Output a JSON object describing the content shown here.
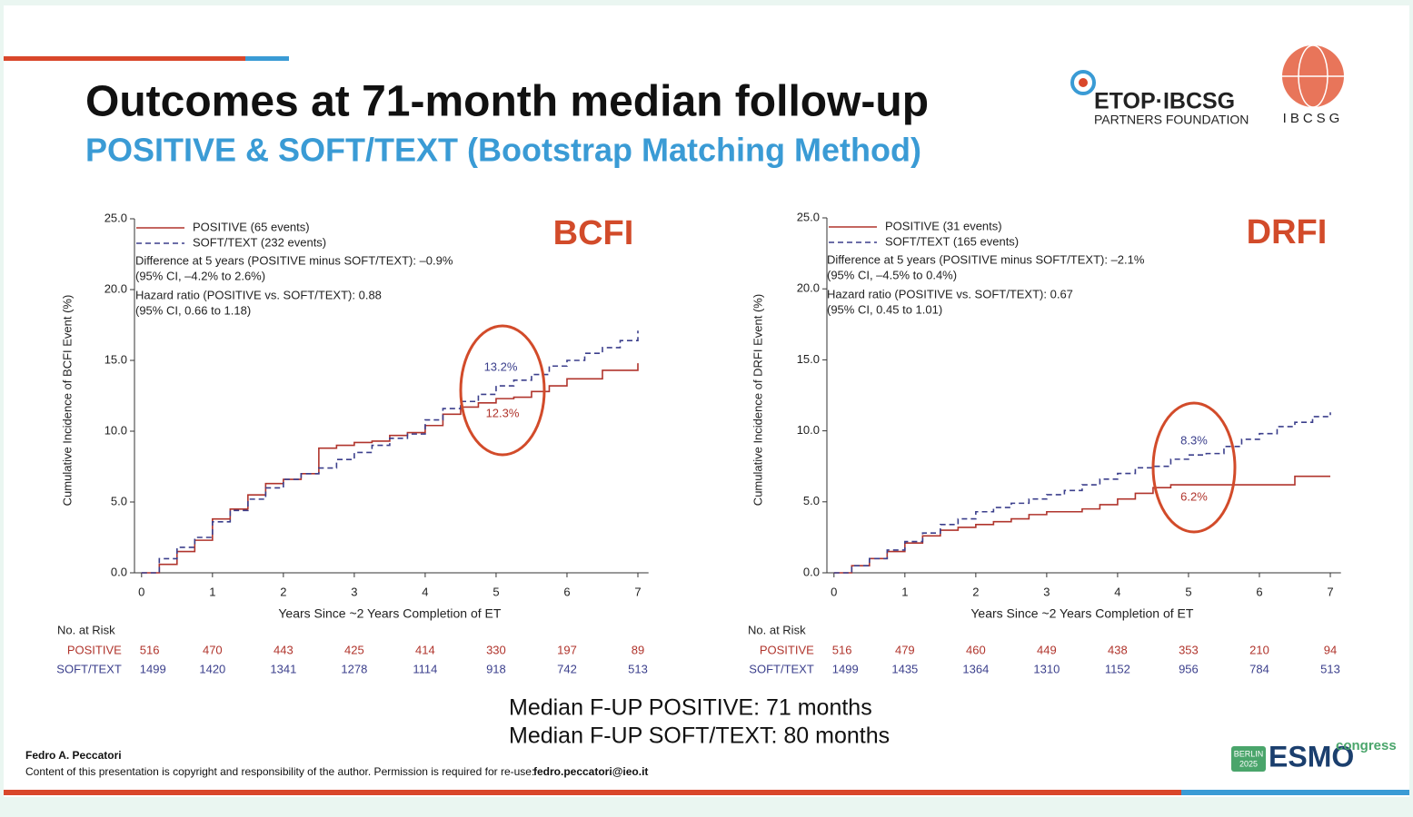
{
  "slide": {
    "title": "Outcomes at 71-month median follow-up",
    "subtitle": "POSITIVE & SOFT/TEXT (Bootstrap Matching Method)",
    "logo_main": "ETOP·IBCSG",
    "logo_sub": "PARTNERS FOUNDATION",
    "logo_ibcsg": "IBCSG",
    "median_lines": [
      "Median F-UP POSITIVE: 71 months",
      "Median F-UP SOFT/TEXT: 80 months"
    ],
    "author": "Fedro A. Peccatori",
    "copyright": "Content of this presentation is copyright and responsibility of the author. Permission is required for re-use:",
    "email": "fedro.peccatori@ieo.it",
    "congress_place": "BERLIN",
    "congress_year": "2025",
    "congress_brand": "ESMO",
    "congress_word": "congress"
  },
  "chart_data": [
    {
      "type": "line",
      "step": true,
      "title": "BCFI",
      "x_label": "Years Since ~2 Years Completion of ET",
      "y_label": "Cumulative Incidence of BCFI Event (%)",
      "xlim": [
        -0.1,
        7.15
      ],
      "ylim": [
        0,
        25
      ],
      "xticks": [
        0,
        1,
        2,
        3,
        4,
        5,
        6,
        7
      ],
      "yticks": [
        {
          "value": 0,
          "label": "0.0"
        },
        {
          "value": 5,
          "label": "5.0"
        },
        {
          "value": 10,
          "label": "10.0"
        },
        {
          "value": 15,
          "label": "15.0"
        },
        {
          "value": 20,
          "label": "20.0"
        },
        {
          "value": 25,
          "label": "25.0"
        }
      ],
      "x": [
        0,
        0.25,
        0.5,
        0.75,
        1,
        1.25,
        1.5,
        1.75,
        2,
        2.25,
        2.5,
        2.75,
        3,
        3.25,
        3.5,
        3.75,
        4,
        4.25,
        4.5,
        4.75,
        5,
        5.25,
        5.5,
        5.75,
        6,
        6.25,
        6.5,
        6.75,
        7
      ],
      "series": [
        {
          "name": "POSITIVE (65 events)",
          "color": "#b0342c",
          "line_style": "solid",
          "values": [
            0,
            0.6,
            1.5,
            2.3,
            3.8,
            4.5,
            5.5,
            6.3,
            6.6,
            7.0,
            8.8,
            9.0,
            9.2,
            9.3,
            9.7,
            9.9,
            10.4,
            11.2,
            11.7,
            12.0,
            12.3,
            12.4,
            12.8,
            13.2,
            13.7,
            13.7,
            14.3,
            14.3,
            14.8
          ]
        },
        {
          "name": "SOFT/TEXT (232 events)",
          "color": "#3b3f8c",
          "line_style": "dashed",
          "values": [
            0,
            1.0,
            1.8,
            2.5,
            3.6,
            4.4,
            5.2,
            6.0,
            6.6,
            7.0,
            7.4,
            8.0,
            8.5,
            9.0,
            9.5,
            9.8,
            10.8,
            11.6,
            12.1,
            12.6,
            13.2,
            13.6,
            14.0,
            14.6,
            15.0,
            15.5,
            15.9,
            16.4,
            17.1
          ]
        }
      ],
      "annotations": [
        "Difference at 5 years (POSITIVE minus SOFT/TEXT): –0.9%",
        "(95% CI, –4.2% to 2.6%)",
        "Hazard ratio (POSITIVE vs. SOFT/TEXT): 0.88",
        "(95% CI, 0.66 to 1.18)"
      ],
      "callouts": [
        "13.2%",
        "12.3%"
      ],
      "risk_table": {
        "title": "No. at Risk",
        "rows": [
          {
            "name": "POSITIVE",
            "values": [
              "516",
              "470",
              "443",
              "425",
              "414",
              "330",
              "197",
              "89"
            ]
          },
          {
            "name": "SOFT/TEXT",
            "values": [
              "1499",
              "1420",
              "1341",
              "1278",
              "1114",
              "918",
              "742",
              "513"
            ]
          }
        ]
      }
    },
    {
      "type": "line",
      "step": true,
      "title": "DRFI",
      "x_label": "Years Since ~2 Years Completion of ET",
      "y_label": "Cumulative Incidence of DRFI Event (%)",
      "xlim": [
        -0.1,
        7.15
      ],
      "ylim": [
        0,
        25
      ],
      "xticks": [
        0,
        1,
        2,
        3,
        4,
        5,
        6,
        7
      ],
      "yticks": [
        {
          "value": 0,
          "label": "0.0"
        },
        {
          "value": 5,
          "label": "5.0"
        },
        {
          "value": 10,
          "label": "10.0"
        },
        {
          "value": 15,
          "label": "15.0"
        },
        {
          "value": 20,
          "label": "20.0"
        },
        {
          "value": 25,
          "label": "25.0"
        }
      ],
      "x": [
        0,
        0.25,
        0.5,
        0.75,
        1,
        1.25,
        1.5,
        1.75,
        2,
        2.25,
        2.5,
        2.75,
        3,
        3.25,
        3.5,
        3.75,
        4,
        4.25,
        4.5,
        4.75,
        5,
        5.25,
        5.5,
        5.75,
        6,
        6.25,
        6.5,
        6.75,
        7
      ],
      "series": [
        {
          "name": "POSITIVE (31 events)",
          "color": "#b0342c",
          "line_style": "solid",
          "values": [
            0,
            0.5,
            1.0,
            1.5,
            2.1,
            2.6,
            3.0,
            3.2,
            3.4,
            3.6,
            3.8,
            4.1,
            4.3,
            4.3,
            4.5,
            4.8,
            5.2,
            5.6,
            6.0,
            6.2,
            6.2,
            6.2,
            6.2,
            6.2,
            6.2,
            6.2,
            6.8,
            6.8,
            6.8
          ]
        },
        {
          "name": "SOFT/TEXT (165 events)",
          "color": "#3b3f8c",
          "line_style": "dashed",
          "values": [
            0,
            0.5,
            1.0,
            1.6,
            2.2,
            2.8,
            3.4,
            3.8,
            4.3,
            4.6,
            4.9,
            5.2,
            5.5,
            5.8,
            6.2,
            6.6,
            7.0,
            7.4,
            7.5,
            8.0,
            8.3,
            8.4,
            8.9,
            9.4,
            9.8,
            10.3,
            10.6,
            11.0,
            11.3
          ]
        }
      ],
      "annotations": [
        "Difference at 5 years (POSITIVE minus SOFT/TEXT): –2.1%",
        "(95% CI, –4.5% to 0.4%)",
        "Hazard ratio (POSITIVE vs. SOFT/TEXT): 0.67",
        "(95% CI, 0.45 to 1.01)"
      ],
      "callouts": [
        "8.3%",
        "6.2%"
      ],
      "risk_table": {
        "title": "No. at Risk",
        "rows": [
          {
            "name": "POSITIVE",
            "values": [
              "516",
              "479",
              "460",
              "449",
              "438",
              "353",
              "210",
              "94"
            ]
          },
          {
            "name": "SOFT/TEXT",
            "values": [
              "1499",
              "1435",
              "1364",
              "1310",
              "1152",
              "956",
              "784",
              "513"
            ]
          }
        ]
      }
    }
  ]
}
